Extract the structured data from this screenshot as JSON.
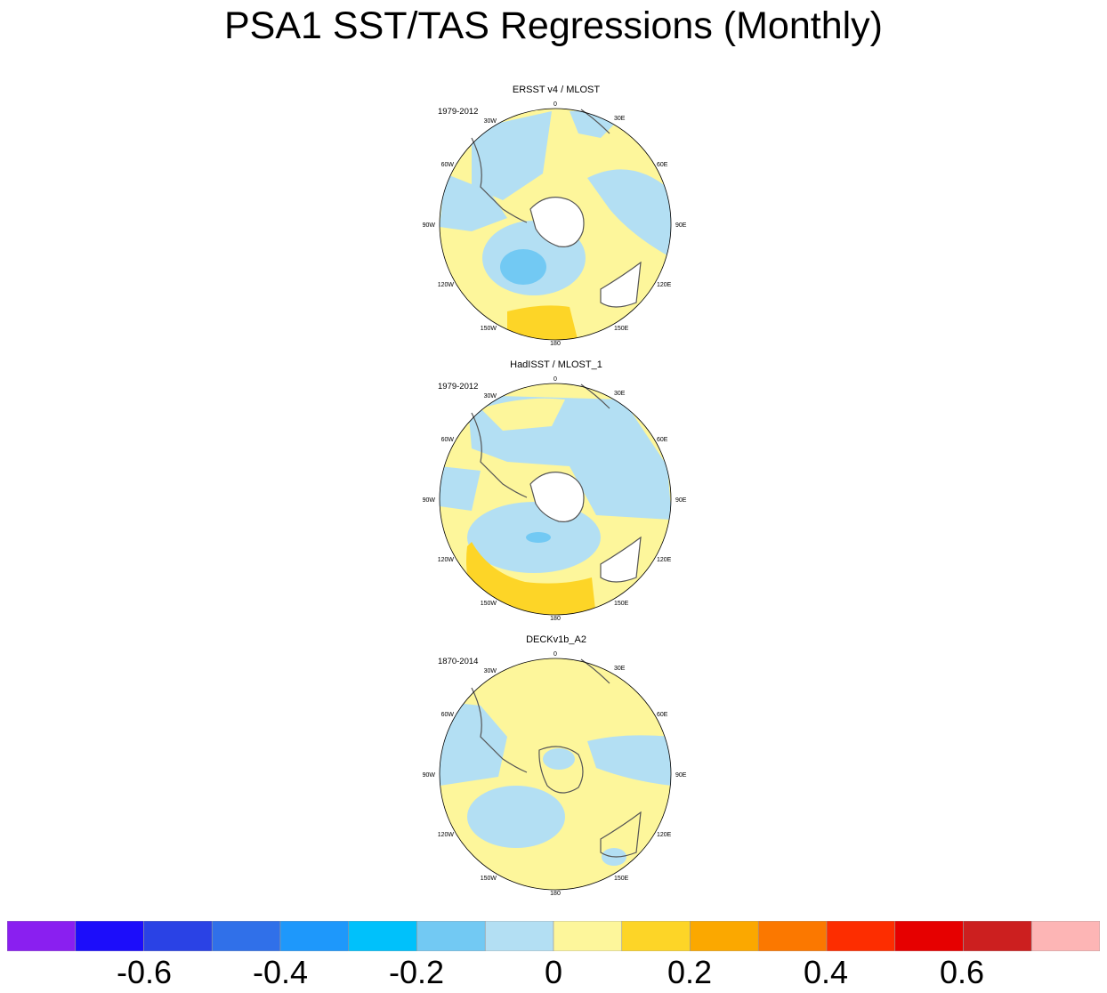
{
  "title": "PSA1 SST/TAS Regressions (Monthly)",
  "panels": [
    {
      "title": "ERSST v4 / MLOST",
      "period": "1979-2012"
    },
    {
      "title": "HadISST / MLOST_1",
      "period": "1979-2012"
    },
    {
      "title": "DECKv1b_A2",
      "period": "1870-2014"
    }
  ],
  "longitude_labels": {
    "lon0": "0",
    "lon30e": "30E",
    "lon60e": "60E",
    "lon90e": "90E",
    "lon120e": "120E",
    "lon150e": "150E",
    "lon180": "180",
    "lon150w": "150W",
    "lon120w": "120W",
    "lon90w": "90W",
    "lon60w": "60W",
    "lon30w": "30W"
  },
  "colorbar": {
    "colors": [
      "#8a1ff0",
      "#1c0dfa",
      "#2a42e5",
      "#3070e9",
      "#1e98fb",
      "#00c1fb",
      "#72c9f3",
      "#b3dff3",
      "#fdf69b",
      "#fdd527",
      "#fba800",
      "#fb7800",
      "#fd2d00",
      "#e60000",
      "#cc1f1f",
      "#fdb5b5"
    ],
    "tick_labels": [
      "-0.6",
      "-0.4",
      "-0.2",
      "0",
      "0.2",
      "0.4",
      "0.6"
    ]
  }
}
